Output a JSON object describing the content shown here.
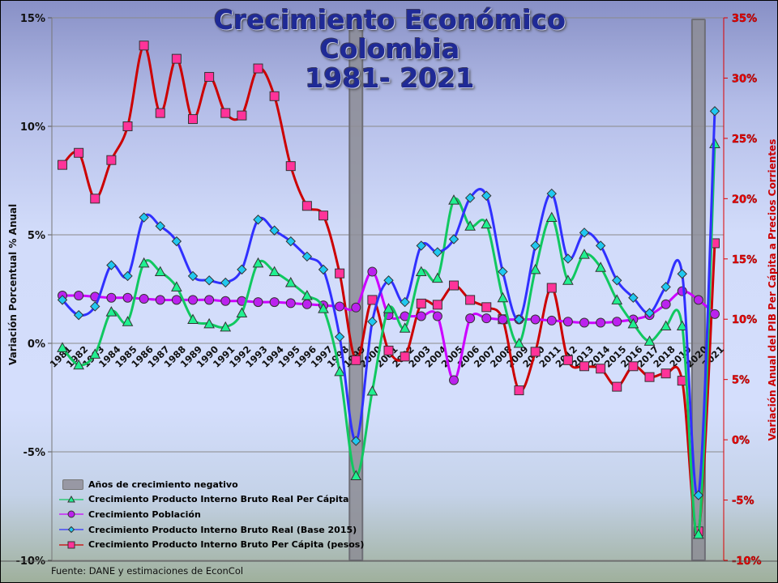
{
  "title": {
    "line1": "Crecimiento Económico",
    "line2": "Colombia",
    "line3": "1981- 2021"
  },
  "source": "Fuente: DANE y estimaciones de EconCol",
  "colors": {
    "green": "#10c860",
    "purple": "#cc00ff",
    "blue": "#3030ff",
    "red": "#cc0000",
    "band": "#888890"
  },
  "chart_data": {
    "type": "line",
    "title": "Crecimiento Económico Colombia 1981- 2021",
    "ylabel": "Variación Porcentual % Anual",
    "y2label": "Variación Anual del PIB Per Cápita a Precios Corrientes",
    "ylim": [
      -10,
      15
    ],
    "y2lim": [
      -10,
      35
    ],
    "yticks": [
      "15%",
      "10%",
      "5%",
      "0%",
      "-5%",
      "-10%"
    ],
    "yticks_values": [
      15,
      10,
      5,
      0,
      -5,
      -10
    ],
    "y2ticks": [
      "35%",
      "30%",
      "25%",
      "20%",
      "15%",
      "10%",
      "5%",
      "0%",
      "-5%",
      "-10%"
    ],
    "y2ticks_values": [
      35,
      30,
      25,
      20,
      15,
      10,
      5,
      0,
      -5,
      -10
    ],
    "grid": true,
    "legend_position": "bottom-left",
    "x": [
      "1981",
      "1982",
      "1983",
      "1984",
      "1985",
      "1986",
      "1987",
      "1988",
      "1989",
      "1990",
      "1991",
      "1992",
      "1993",
      "1994",
      "1995",
      "1996",
      "1997",
      "1998",
      "1999",
      "2000",
      "2001",
      "2002",
      "2003",
      "2004",
      "2005",
      "2006",
      "2007",
      "2008",
      "2009",
      "2010",
      "2011",
      "2012",
      "2013",
      "2014",
      "2015",
      "2016",
      "2017",
      "2018",
      "2019",
      "2020",
      "2021"
    ],
    "negative_years": [
      "1999",
      "2020"
    ],
    "negative_label": "Años de crecimiento negativo",
    "series": [
      {
        "name": "Crecimiento Producto Interno Bruto Real Per Cápita",
        "axis": "left",
        "marker": "triangle",
        "color": "#10c860",
        "fill": "#20f090",
        "values": [
          -0.2,
          -1.0,
          -0.5,
          1.45,
          1.0,
          3.7,
          3.3,
          2.6,
          1.1,
          0.9,
          0.75,
          1.4,
          3.7,
          3.3,
          2.8,
          2.2,
          1.6,
          -1.3,
          -6.1,
          -2.2,
          1.6,
          0.7,
          3.3,
          3.0,
          6.6,
          5.4,
          5.5,
          2.1,
          0.0,
          3.4,
          5.8,
          2.9,
          4.1,
          3.5,
          2.0,
          0.9,
          0.1,
          0.8,
          0.8,
          -8.8,
          9.2
        ]
      },
      {
        "name": "Crecimiento Población",
        "axis": "left",
        "marker": "circle",
        "color": "#cc00ff",
        "fill": "#bb22ee",
        "values": [
          2.2,
          2.2,
          2.15,
          2.1,
          2.1,
          2.05,
          2.0,
          2.0,
          2.0,
          2.0,
          1.95,
          1.95,
          1.9,
          1.9,
          1.85,
          1.8,
          1.75,
          1.7,
          1.65,
          3.3,
          1.3,
          1.25,
          1.25,
          1.25,
          -1.7,
          1.15,
          1.15,
          1.1,
          1.1,
          1.1,
          1.05,
          1.0,
          0.95,
          0.95,
          1.0,
          1.1,
          1.3,
          1.8,
          2.4,
          2.0,
          1.35
        ]
      },
      {
        "name": "Crecimiento Producto Interno Bruto Real (Base 2015)",
        "axis": "left",
        "marker": "diamond",
        "color": "#3030ff",
        "fill": "#20c8f0",
        "values": [
          2.0,
          1.3,
          1.7,
          3.6,
          3.1,
          5.8,
          5.4,
          4.7,
          3.1,
          2.9,
          2.8,
          3.4,
          5.7,
          5.2,
          4.7,
          4.0,
          3.4,
          0.3,
          -4.5,
          1.0,
          2.9,
          1.9,
          4.5,
          4.2,
          4.8,
          6.7,
          6.8,
          3.3,
          1.1,
          4.5,
          6.9,
          3.9,
          5.1,
          4.5,
          2.9,
          2.1,
          1.4,
          2.6,
          3.2,
          -7.0,
          10.7
        ]
      },
      {
        "name": "Crecimiento Producto Interno Bruto Per Cápita (pesos)",
        "axis": "right",
        "marker": "square",
        "color": "#cc0000",
        "fill": "#ff3399",
        "values": [
          22.8,
          23.8,
          20.0,
          23.2,
          26.0,
          32.7,
          27.1,
          31.6,
          26.6,
          30.1,
          27.1,
          26.9,
          30.8,
          28.5,
          22.7,
          19.4,
          18.6,
          13.8,
          6.6,
          11.6,
          7.4,
          6.9,
          11.3,
          11.2,
          12.8,
          11.6,
          11.0,
          10.0,
          4.1,
          7.3,
          12.6,
          6.6,
          6.1,
          5.9,
          4.4,
          6.1,
          5.2,
          5.5,
          4.9,
          -7.6,
          16.3
        ]
      }
    ]
  }
}
